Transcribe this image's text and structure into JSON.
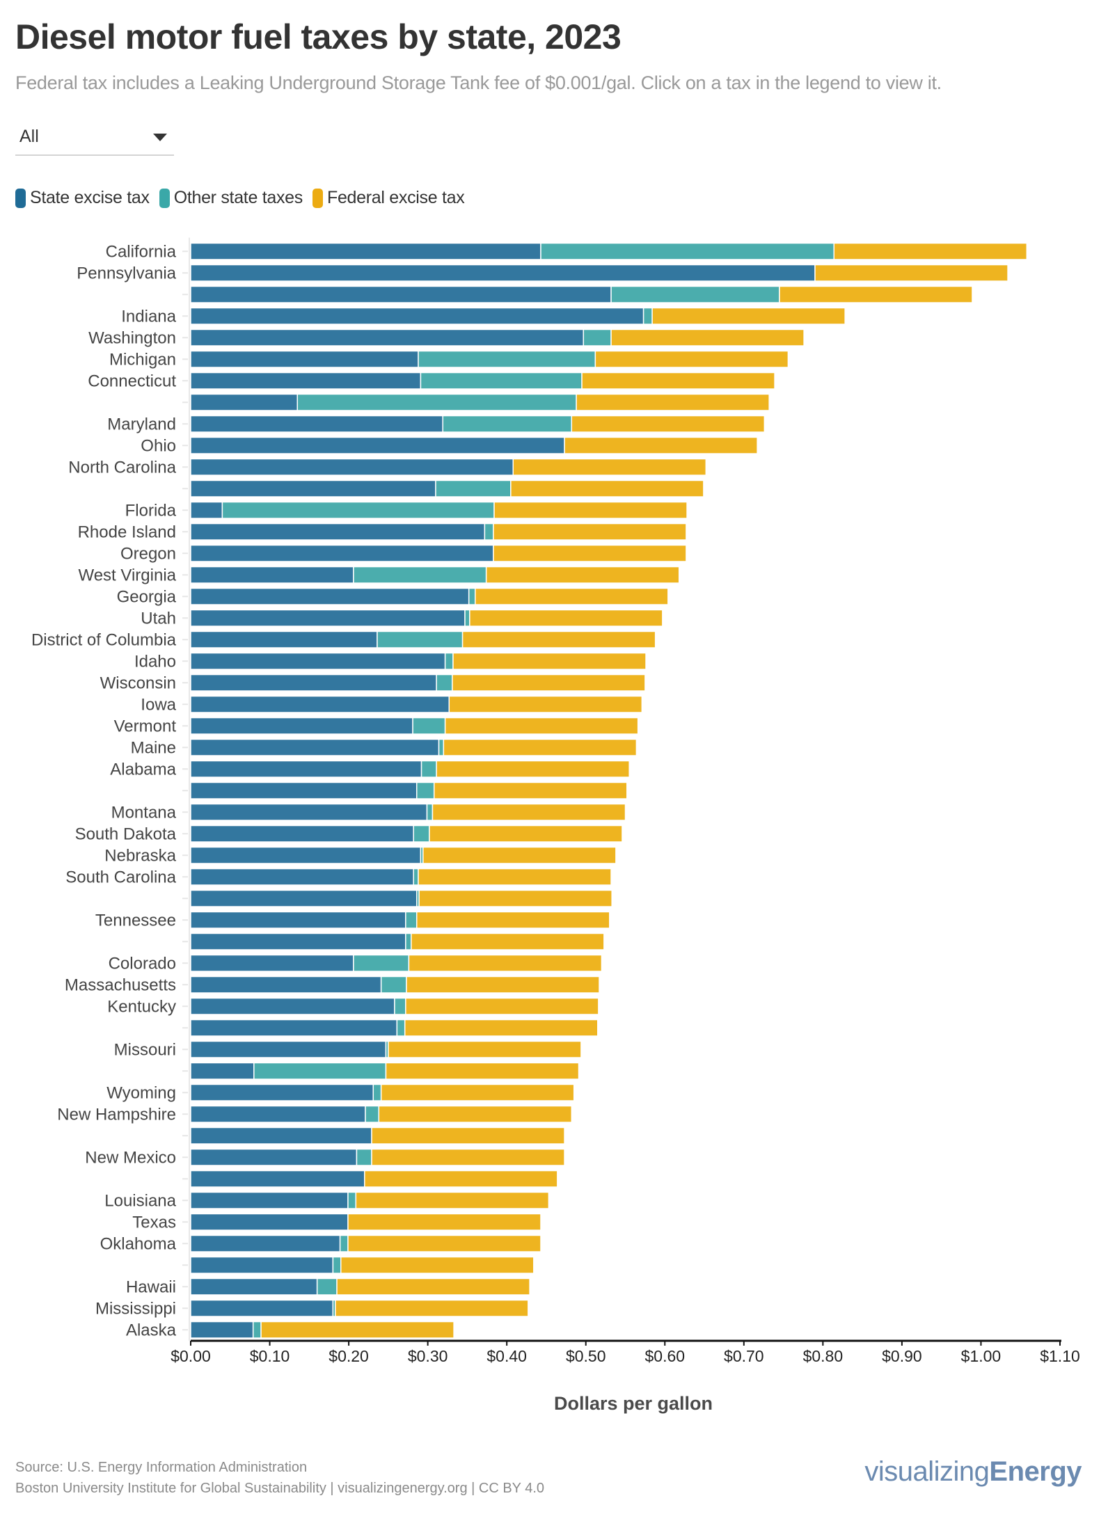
{
  "header": {
    "title": "Diesel motor fuel taxes by state, 2023",
    "subtitle": "Federal tax includes a Leaking Underground Storage Tank fee of $0.001/gal. Click on a tax in the legend to view it."
  },
  "filter": {
    "selected": "All"
  },
  "legend": [
    {
      "label": "State excise tax",
      "color": "#1f6b96",
      "icon": "legend-swatch"
    },
    {
      "label": "Other state taxes",
      "color": "#3aa8a8",
      "icon": "legend-swatch"
    },
    {
      "label": "Federal excise tax",
      "color": "#ecab12",
      "icon": "legend-swatch"
    }
  ],
  "footer": {
    "source": "Source: U.S. Energy Information Administration",
    "credit": "Boston University Institute for Global Sustainability | visualizingenergy.org | CC BY 4.0",
    "logo_light": "visualizing",
    "logo_bold": "Energy"
  },
  "chart_data": {
    "type": "bar",
    "orientation": "horizontal",
    "stacked": true,
    "title": "Diesel motor fuel taxes by state, 2023",
    "xlabel": "Dollars per gallon",
    "ylabel": "",
    "xlim": [
      0,
      1.1
    ],
    "x_ticks": [
      "$0.00",
      "$0.10",
      "$0.20",
      "$0.30",
      "$0.40",
      "$0.50",
      "$0.60",
      "$0.70",
      "$0.80",
      "$0.90",
      "$1.00",
      "$1.10"
    ],
    "x_tick_values": [
      0,
      0.1,
      0.2,
      0.3,
      0.4,
      0.5,
      0.6,
      0.7,
      0.8,
      0.9,
      1.0,
      1.1
    ],
    "grid": false,
    "legend_position": "top-left",
    "categories": [
      "California",
      "Pennsylvania",
      "",
      "Indiana",
      "Washington",
      "Michigan",
      "Connecticut",
      "",
      "Maryland",
      "Ohio",
      "North Carolina",
      "",
      "Florida",
      "Rhode Island",
      "Oregon",
      "West Virginia",
      "Georgia",
      "Utah",
      "District of Columbia",
      "Idaho",
      "Wisconsin",
      "Iowa",
      "Vermont",
      "Maine",
      "Alabama",
      "",
      "Montana",
      "South Dakota",
      "Nebraska",
      "South Carolina",
      "",
      "Tennessee",
      "",
      "Colorado",
      "Massachusetts",
      "Kentucky",
      "",
      "Missouri",
      "",
      "Wyoming",
      "New Hampshire",
      "",
      "New Mexico",
      "",
      "Louisiana",
      "Texas",
      "Oklahoma",
      "",
      "Hawaii",
      "Mississippi",
      "Alaska"
    ],
    "series": [
      {
        "name": "State excise tax",
        "color": "#33779f",
        "values": [
          0.443,
          0.79,
          0.532,
          0.573,
          0.497,
          0.288,
          0.291,
          0.135,
          0.319,
          0.473,
          0.408,
          0.31,
          0.04,
          0.372,
          0.383,
          0.206,
          0.352,
          0.347,
          0.236,
          0.322,
          0.311,
          0.327,
          0.281,
          0.314,
          0.292,
          0.286,
          0.299,
          0.282,
          0.291,
          0.282,
          0.286,
          0.272,
          0.272,
          0.206,
          0.241,
          0.258,
          0.261,
          0.247,
          0.08,
          0.231,
          0.221,
          0.229,
          0.21,
          0.22,
          0.199,
          0.199,
          0.189,
          0.18,
          0.16,
          0.18,
          0.079
        ]
      },
      {
        "name": "Other state taxes",
        "color": "#4badad",
        "values": [
          0.371,
          0.0,
          0.213,
          0.011,
          0.035,
          0.224,
          0.204,
          0.353,
          0.163,
          0.0,
          0.0,
          0.095,
          0.344,
          0.011,
          0.0,
          0.168,
          0.008,
          0.006,
          0.108,
          0.01,
          0.02,
          0.0,
          0.041,
          0.006,
          0.019,
          0.022,
          0.007,
          0.02,
          0.003,
          0.006,
          0.003,
          0.014,
          0.007,
          0.07,
          0.032,
          0.014,
          0.01,
          0.003,
          0.167,
          0.01,
          0.017,
          0.0,
          0.019,
          0.0,
          0.01,
          0.0,
          0.01,
          0.01,
          0.025,
          0.003,
          0.01
        ]
      },
      {
        "name": "Federal excise tax",
        "color": "#eeb420",
        "values": [
          0.244,
          0.244,
          0.244,
          0.244,
          0.244,
          0.244,
          0.244,
          0.244,
          0.244,
          0.244,
          0.244,
          0.244,
          0.244,
          0.244,
          0.244,
          0.244,
          0.244,
          0.244,
          0.244,
          0.244,
          0.244,
          0.244,
          0.244,
          0.244,
          0.244,
          0.244,
          0.244,
          0.244,
          0.244,
          0.244,
          0.244,
          0.244,
          0.244,
          0.244,
          0.244,
          0.244,
          0.244,
          0.244,
          0.244,
          0.244,
          0.244,
          0.244,
          0.244,
          0.244,
          0.244,
          0.244,
          0.244,
          0.244,
          0.244,
          0.244,
          0.244
        ]
      }
    ]
  }
}
